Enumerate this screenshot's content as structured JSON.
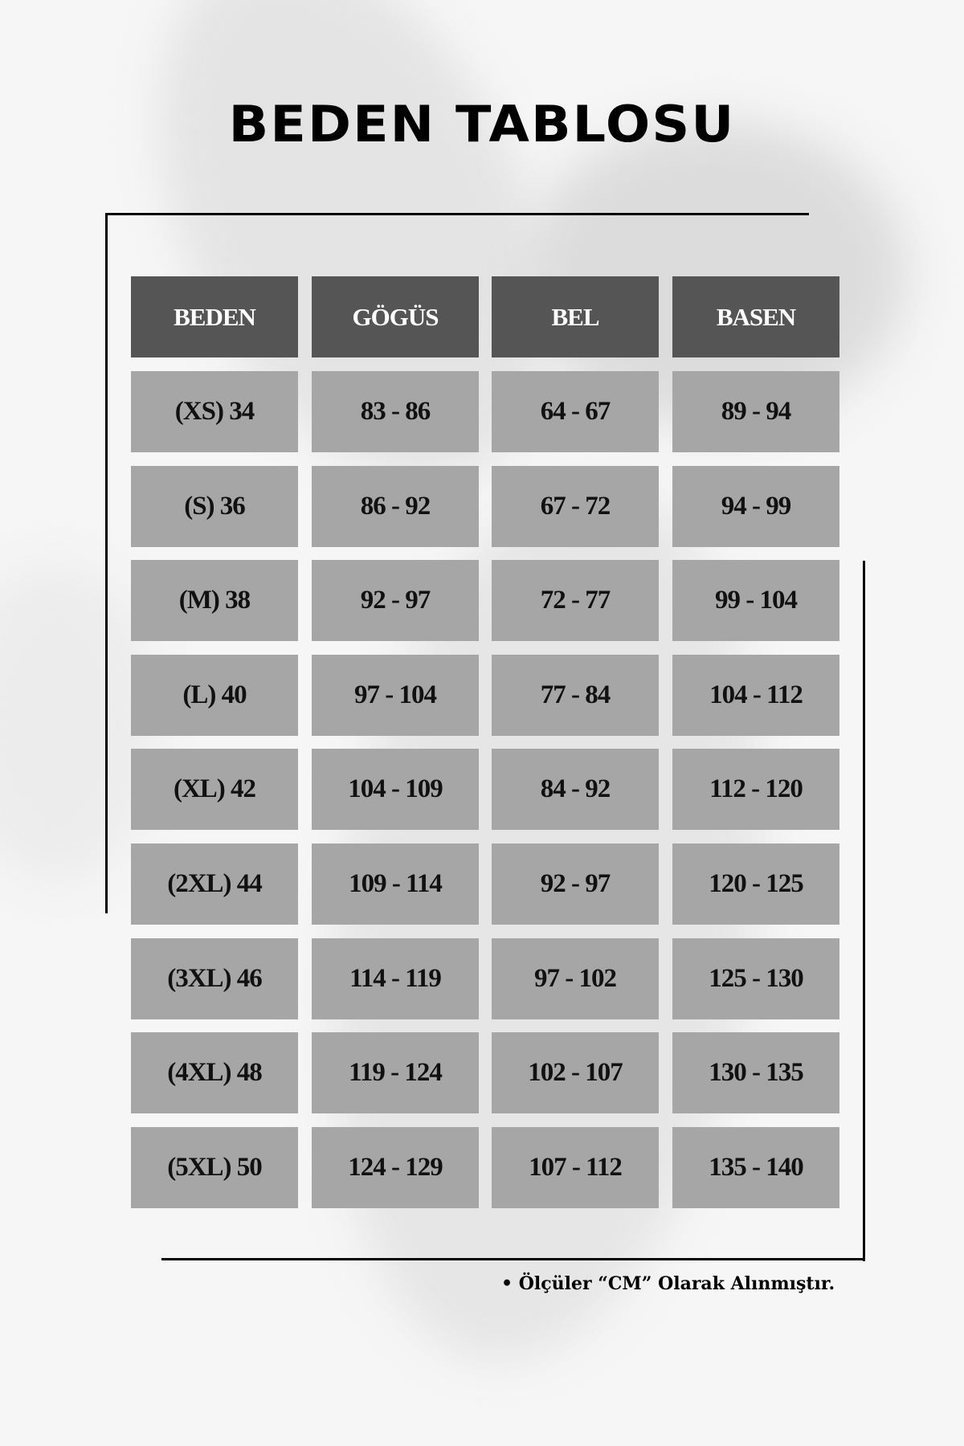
{
  "title": "BEDEN TABLOSU",
  "colors": {
    "header_bg": "#555555",
    "cell_bg": "#a6a6a6",
    "background": "#f6f6f6"
  },
  "table": {
    "headers": [
      "BEDEN",
      "GÖGÜS",
      "BEL",
      "BASEN"
    ],
    "rows": [
      [
        "(XS) 34",
        "83 - 86",
        "64 - 67",
        "89 - 94"
      ],
      [
        "(S) 36",
        "86 - 92",
        "67 - 72",
        "94 - 99"
      ],
      [
        "(M) 38",
        "92 - 97",
        "72 - 77",
        "99 - 104"
      ],
      [
        "(L) 40",
        "97 - 104",
        "77 - 84",
        "104 - 112"
      ],
      [
        "(XL) 42",
        "104 - 109",
        "84 - 92",
        "112 - 120"
      ],
      [
        "(2XL) 44",
        "109 - 114",
        "92 - 97",
        "120 - 125"
      ],
      [
        "(3XL) 46",
        "114 - 119",
        "97 - 102",
        "125 - 130"
      ],
      [
        "(4XL) 48",
        "119 - 124",
        "102 - 107",
        "130 - 135"
      ],
      [
        "(5XL) 50",
        "124 - 129",
        "107 - 112",
        "135 - 140"
      ]
    ]
  },
  "note": "• Ölçüler “CM” Olarak Alınmıştır."
}
